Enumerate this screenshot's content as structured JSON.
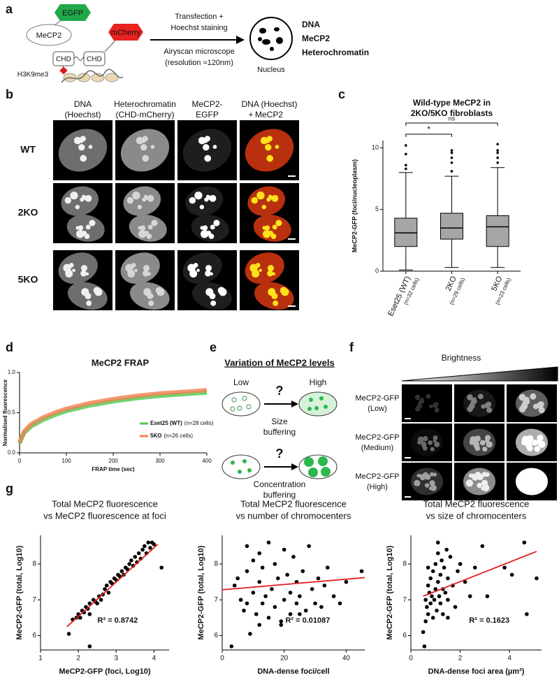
{
  "panel_labels": [
    "a",
    "b",
    "c",
    "d",
    "e",
    "f",
    "g"
  ],
  "panel_a": {
    "egfp": "EGFP",
    "mecp2": "MeCP2",
    "mcherry": "mCherry",
    "chd": [
      "CHD",
      "CHD"
    ],
    "h3k9me3": "H3K9me3",
    "steps": [
      "Transfection +",
      "Hoechst staining",
      "Airyscan microscope",
      "(resolution ≈120nm)"
    ],
    "nucleus": "Nucleus",
    "legend": [
      {
        "label": "DNA",
        "color": "#1f8fe0"
      },
      {
        "label": "MeCP2",
        "color": "#2db84c"
      },
      {
        "label": "Heterochromatin",
        "color": "#e8231f"
      }
    ]
  },
  "panel_b": {
    "columns": [
      [
        "DNA",
        "(Hoechst)"
      ],
      [
        "Heterochromatin",
        "(CHD-mCherry)"
      ],
      [
        "MeCP2-",
        "EGFP"
      ]
    ],
    "merge_column": {
      "line1": "DNA (Hoechst)",
      "plus": "+",
      "mecp2": "MeCP2"
    },
    "rows": [
      "WT",
      "2KO",
      "5KO"
    ]
  },
  "panel_e": {
    "title": "Variation of MeCP2 levels",
    "low": "Low",
    "high": "High",
    "question": [
      "?",
      "?"
    ],
    "size_buffering": [
      "Size",
      "buffering"
    ],
    "concentration_buffering": [
      "Concentration",
      "buffering"
    ]
  },
  "panel_f": {
    "brightness": "Brightness",
    "rows": [
      [
        "MeCP2-GFP",
        "(Low)"
      ],
      [
        "MeCP2-GFP",
        "(Medium)"
      ],
      [
        "MeCP2-GFP",
        "(High)"
      ]
    ]
  },
  "chart_data": [
    {
      "type": "box",
      "title": [
        "Wild-type MeCP2 in",
        "2KO/5KO fibroblasts"
      ],
      "ylabel": "MeCP2-GFP (foci/nucleoplasm)",
      "categories": [
        "Eset25 (WT)",
        "2KO",
        "5KO"
      ],
      "category_notes": [
        "(n=32 cells)",
        "(n=29 cells)",
        "(n=23 cells)"
      ],
      "min": [
        0.1,
        0.3,
        0.3
      ],
      "q1": [
        2.0,
        2.6,
        2.0
      ],
      "median": [
        3.1,
        3.5,
        3.6
      ],
      "q3": [
        4.3,
        4.7,
        4.5
      ],
      "max": [
        8.0,
        7.7,
        8.4
      ],
      "outliers": [
        [
          8.3,
          8.6,
          9.5,
          10.2
        ],
        [
          8.1,
          8.8,
          9.2,
          9.6,
          9.8
        ],
        [
          8.8,
          9.2,
          9.6,
          9.8,
          10.3
        ]
      ],
      "annotations": [
        "*",
        "ns"
      ],
      "color": "#a6a6a6",
      "ylim": [
        0,
        10.6
      ],
      "yticks": [
        0,
        5,
        10
      ]
    },
    {
      "type": "line",
      "title": "MeCP2 FRAP",
      "xlabel": "FRAP time (sec)",
      "ylabel": "Normalised fluorescence",
      "x": [
        0,
        10,
        25,
        50,
        75,
        100,
        150,
        200,
        250,
        300,
        350,
        400
      ],
      "series": [
        {
          "name": "Eset25 (WT)",
          "note": "(n=28 cells)",
          "color": "#4cc94c",
          "values": [
            0.12,
            0.25,
            0.33,
            0.41,
            0.47,
            0.52,
            0.59,
            0.64,
            0.68,
            0.71,
            0.73,
            0.75
          ]
        },
        {
          "name": "5KO",
          "note": "(n=26 cells)",
          "color": "#f08050",
          "values": [
            0.13,
            0.27,
            0.36,
            0.44,
            0.5,
            0.55,
            0.62,
            0.67,
            0.71,
            0.74,
            0.76,
            0.78
          ]
        }
      ],
      "xlim": [
        0,
        400
      ],
      "xticks": [
        0,
        100,
        200,
        300,
        400
      ],
      "ylim": [
        0,
        1.0
      ],
      "yticks": [
        {
          "value": 0,
          "label": "0.0"
        },
        0.5,
        {
          "value": 1,
          "label": "1.0"
        }
      ]
    },
    {
      "type": "scatter",
      "title": [
        "Total MeCP2 fluorescence",
        "vs MeCP2 fluorescence at foci"
      ],
      "xlabel": "MeCP2-GFP (foci, Log10)",
      "ylabel": "MeCP2-GFP (total, Log10)",
      "annotation": "R² = 0.8742",
      "color": "#000000",
      "x": [
        1.75,
        1.85,
        1.95,
        2.0,
        2.05,
        2.1,
        2.15,
        2.2,
        2.25,
        2.3,
        2.3,
        2.4,
        2.45,
        2.5,
        2.55,
        2.6,
        2.65,
        2.7,
        2.75,
        2.8,
        2.85,
        2.9,
        2.95,
        3.0,
        3.05,
        3.1,
        3.15,
        3.2,
        3.25,
        3.3,
        3.35,
        3.4,
        3.45,
        3.5,
        3.55,
        3.6,
        3.65,
        3.7,
        3.75,
        3.8,
        3.85,
        3.9,
        3.95,
        4.0,
        4.2,
        2.3
      ],
      "values": [
        6.05,
        6.45,
        6.5,
        6.6,
        6.5,
        6.7,
        6.65,
        6.8,
        6.75,
        6.9,
        6.6,
        7.0,
        6.95,
        6.9,
        7.1,
        7.0,
        7.15,
        7.3,
        7.4,
        7.2,
        7.5,
        7.45,
        7.6,
        7.55,
        7.7,
        7.65,
        7.8,
        7.7,
        7.9,
        7.85,
        8.0,
        8.1,
        7.95,
        8.2,
        8.05,
        8.3,
        8.15,
        8.4,
        8.5,
        8.3,
        8.6,
        8.45,
        8.6,
        8.55,
        7.9,
        5.7
      ],
      "trend": {
        "x": [
          1.7,
          4.1
        ],
        "values": [
          6.25,
          8.55
        ],
        "color": "#e02020"
      },
      "xlim": [
        1,
        4.4
      ],
      "xticks": [
        1,
        2,
        3,
        4
      ],
      "ylim": [
        5.6,
        8.8
      ],
      "yticks": [
        6,
        7,
        8
      ]
    },
    {
      "type": "scatter",
      "title": [
        "Total MeCP2 fluorescence",
        "vs number of chromocenters"
      ],
      "xlabel": "DNA-dense foci/cell",
      "ylabel": "MeCP2-GFP (total, Log10)",
      "annotation": "R² = 0.01087",
      "color": "#000000",
      "x": [
        3,
        4,
        5,
        6,
        7,
        8,
        8,
        9,
        10,
        10,
        11,
        12,
        12,
        13,
        13,
        14,
        15,
        15,
        16,
        17,
        17,
        18,
        19,
        20,
        20,
        21,
        22,
        22,
        23,
        24,
        24,
        25,
        26,
        27,
        28,
        29,
        30,
        31,
        32,
        33,
        34,
        36,
        38,
        40,
        45,
        8,
        12,
        19,
        25
      ],
      "values": [
        5.7,
        7.4,
        7.6,
        7.0,
        6.7,
        6.9,
        7.8,
        6.05,
        7.2,
        8.1,
        6.6,
        7.5,
        8.3,
        6.9,
        7.9,
        7.1,
        8.6,
        6.5,
        7.3,
        8.0,
        6.8,
        7.6,
        6.4,
        7.0,
        8.4,
        7.7,
        6.6,
        7.2,
        8.2,
        6.9,
        7.5,
        7.1,
        7.8,
        6.7,
        8.5,
        7.3,
        6.9,
        7.6,
        6.8,
        7.4,
        7.9,
        7.1,
        6.9,
        7.5,
        7.8,
        8.5,
        6.3,
        6.3,
        6.6
      ],
      "trend": {
        "x": [
          0,
          46
        ],
        "values": [
          7.28,
          7.62
        ],
        "color": "#e02020"
      },
      "xlim": [
        0,
        46
      ],
      "xticks": [
        0,
        20,
        40
      ],
      "ylim": [
        5.6,
        8.8
      ],
      "yticks": [
        6,
        7,
        8
      ]
    },
    {
      "type": "scatter",
      "title": [
        "Total MeCP2 fluorescence",
        "vs size of chromocenters"
      ],
      "xlabel": "DNA-dense foci area (µm²)",
      "ylabel": "MeCP2-GFP (total, Log10)",
      "annotation": "R² = 0.1623",
      "color": "#000000",
      "x": [
        0.5,
        0.55,
        0.6,
        0.6,
        0.65,
        0.7,
        0.7,
        0.75,
        0.8,
        0.8,
        0.85,
        0.9,
        0.9,
        0.95,
        1.0,
        1.0,
        1.05,
        1.1,
        1.1,
        1.15,
        1.2,
        1.2,
        1.25,
        1.3,
        1.3,
        1.35,
        1.4,
        1.45,
        1.5,
        1.5,
        1.6,
        1.7,
        1.8,
        1.9,
        2.0,
        2.2,
        2.4,
        2.6,
        2.9,
        3.1,
        3.8,
        4.1,
        4.6,
        4.7,
        5.1,
        1.1,
        0.7,
        1.5
      ],
      "values": [
        6.1,
        5.7,
        6.4,
        7.0,
        6.8,
        7.4,
        6.6,
        7.2,
        6.9,
        7.6,
        7.1,
        6.5,
        7.8,
        7.0,
        7.3,
        8.0,
        6.7,
        7.5,
        8.3,
        7.1,
        6.9,
        7.7,
        8.1,
        7.3,
        6.6,
        7.9,
        7.2,
        8.4,
        7.0,
        7.6,
        8.2,
        7.4,
        6.8,
        7.8,
        8.0,
        7.5,
        7.1,
        7.9,
        8.5,
        7.1,
        7.9,
        7.7,
        8.6,
        6.6,
        7.6,
        8.6,
        7.9,
        6.5
      ],
      "trend": {
        "x": [
          0.5,
          5.1
        ],
        "values": [
          7.1,
          8.35
        ],
        "color": "#e02020"
      },
      "xlim": [
        0,
        5.3
      ],
      "xticks": [
        0,
        2,
        4
      ],
      "ylim": [
        5.6,
        8.8
      ],
      "yticks": [
        6,
        7,
        8
      ]
    }
  ]
}
